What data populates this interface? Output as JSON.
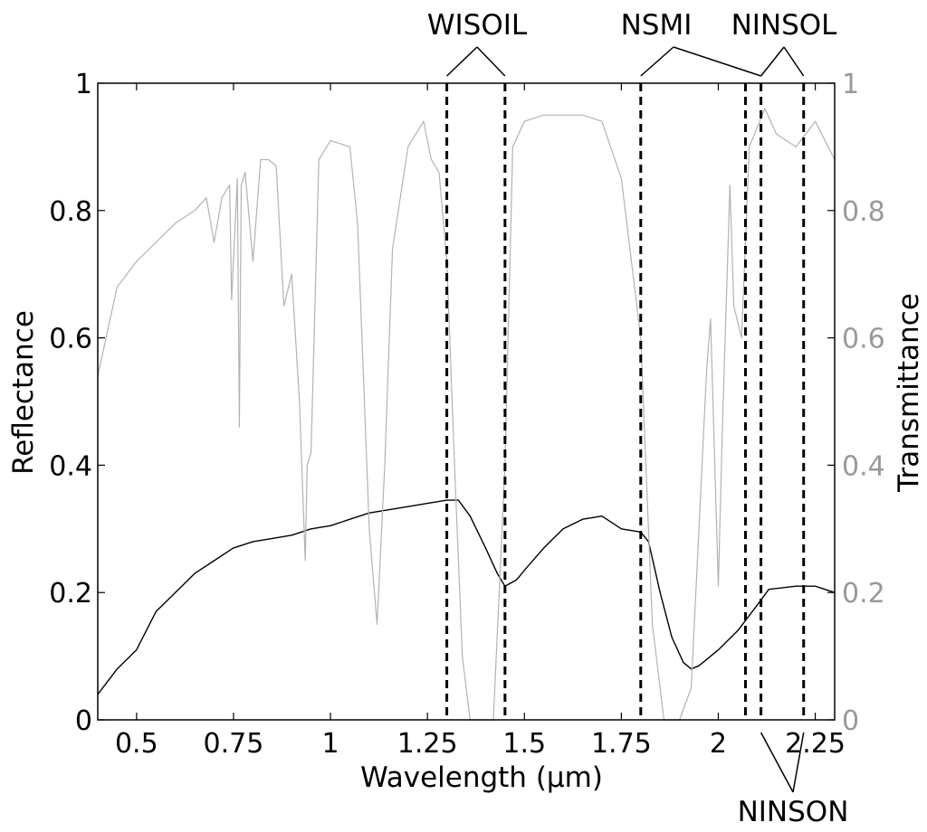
{
  "chart_data": {
    "type": "line",
    "xlabel": "Wavelength (µm)",
    "ylabel": "Reflectance",
    "y2label": "Transmittance",
    "xlim": [
      0.4,
      2.3
    ],
    "ylim": [
      0,
      1
    ],
    "y2lim": [
      0,
      1
    ],
    "x_ticks": [
      0.5,
      0.75,
      1,
      1.25,
      1.5,
      1.75,
      2,
      2.25
    ],
    "x_tick_labels": [
      "0.5",
      "0.75",
      "1",
      "1.25",
      "1.5",
      "1.75",
      "2",
      "2.25"
    ],
    "y_ticks": [
      0,
      0.2,
      0.4,
      0.6,
      0.8,
      1
    ],
    "y_tick_labels": [
      "0",
      "0.2",
      "0.4",
      "0.6",
      "0.8",
      "1"
    ],
    "y2_tick_labels": [
      "0",
      "0.2",
      "0.4",
      "0.6",
      "0.8",
      "1"
    ],
    "grid": false,
    "colors": {
      "reflectance": "#000000",
      "transmittance": "#b3b3b3",
      "right_axis": "#999999"
    },
    "series": [
      {
        "axis": "left",
        "x": [
          0.4,
          0.45,
          0.5,
          0.55,
          0.6,
          0.65,
          0.7,
          0.75,
          0.8,
          0.85,
          0.9,
          0.95,
          1.0,
          1.05,
          1.1,
          1.15,
          1.2,
          1.25,
          1.3,
          1.33,
          1.36,
          1.4,
          1.43,
          1.45,
          1.48,
          1.5,
          1.55,
          1.6,
          1.65,
          1.7,
          1.75,
          1.8,
          1.82,
          1.85,
          1.88,
          1.91,
          1.93,
          1.95,
          2.0,
          2.05,
          2.1,
          2.13,
          2.2,
          2.25,
          2.3
        ],
        "y": [
          0.04,
          0.08,
          0.11,
          0.17,
          0.2,
          0.23,
          0.25,
          0.27,
          0.28,
          0.285,
          0.29,
          0.3,
          0.305,
          0.315,
          0.325,
          0.33,
          0.335,
          0.34,
          0.345,
          0.345,
          0.32,
          0.27,
          0.23,
          0.21,
          0.22,
          0.235,
          0.27,
          0.3,
          0.315,
          0.32,
          0.3,
          0.295,
          0.28,
          0.2,
          0.13,
          0.09,
          0.08,
          0.085,
          0.11,
          0.14,
          0.18,
          0.205,
          0.21,
          0.21,
          0.2
        ]
      },
      {
        "axis": "right",
        "x": [
          0.4,
          0.45,
          0.5,
          0.55,
          0.6,
          0.65,
          0.68,
          0.7,
          0.72,
          0.74,
          0.745,
          0.76,
          0.765,
          0.77,
          0.78,
          0.8,
          0.82,
          0.84,
          0.86,
          0.88,
          0.9,
          0.92,
          0.935,
          0.94,
          0.95,
          0.97,
          1.0,
          1.05,
          1.07,
          1.1,
          1.12,
          1.14,
          1.16,
          1.2,
          1.24,
          1.26,
          1.28,
          1.3,
          1.32,
          1.34,
          1.36,
          1.38,
          1.42,
          1.45,
          1.47,
          1.5,
          1.55,
          1.6,
          1.65,
          1.7,
          1.75,
          1.8,
          1.83,
          1.86,
          1.9,
          1.93,
          1.95,
          1.97,
          1.98,
          2.0,
          2.01,
          2.03,
          2.04,
          2.06,
          2.08,
          2.12,
          2.15,
          2.2,
          2.25,
          2.3
        ],
        "y": [
          0.54,
          0.68,
          0.72,
          0.75,
          0.78,
          0.8,
          0.82,
          0.75,
          0.82,
          0.84,
          0.66,
          0.85,
          0.46,
          0.84,
          0.86,
          0.72,
          0.88,
          0.88,
          0.87,
          0.65,
          0.7,
          0.5,
          0.25,
          0.4,
          0.42,
          0.88,
          0.91,
          0.9,
          0.78,
          0.3,
          0.15,
          0.4,
          0.74,
          0.9,
          0.94,
          0.88,
          0.86,
          0.72,
          0.4,
          0.1,
          0.0,
          0.0,
          0.0,
          0.4,
          0.9,
          0.94,
          0.95,
          0.95,
          0.95,
          0.94,
          0.85,
          0.6,
          0.15,
          0.0,
          0.0,
          0.05,
          0.3,
          0.55,
          0.63,
          0.21,
          0.45,
          0.84,
          0.65,
          0.6,
          0.9,
          0.96,
          0.92,
          0.9,
          0.94,
          0.88
        ]
      }
    ],
    "vlines": [
      1.3,
      1.45,
      1.8,
      2.07,
      2.11,
      2.22
    ],
    "annotations": [
      {
        "label": "WISOIL",
        "targets": [
          1.3,
          1.45
        ]
      },
      {
        "label": "NSMI",
        "targets": [
          1.8,
          2.11
        ]
      },
      {
        "label": "NINSOL",
        "targets": [
          2.11,
          2.22
        ]
      },
      {
        "label": "NINSON",
        "targets": [
          2.11,
          2.22
        ]
      }
    ]
  }
}
